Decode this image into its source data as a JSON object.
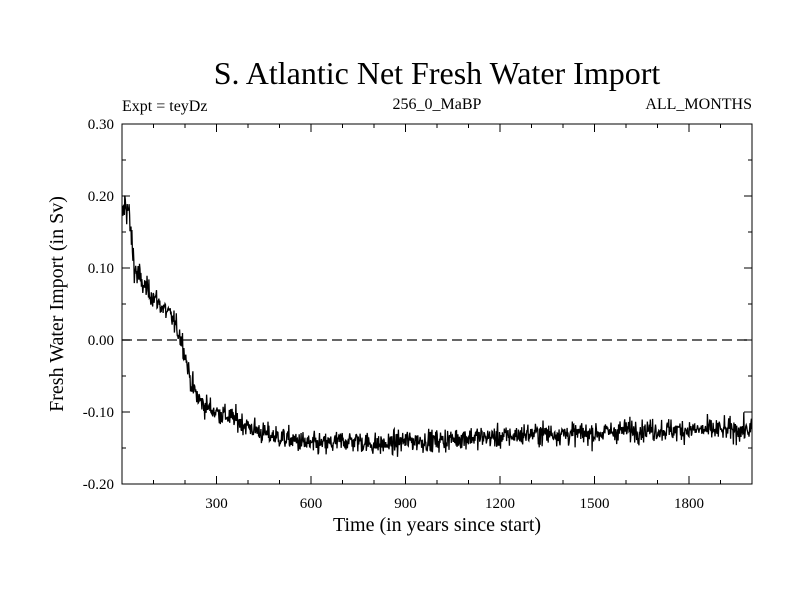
{
  "chart_data": {
    "type": "line",
    "title": "S. Atlantic Net Fresh Water Import",
    "subtitle_left": "Expt = teyDz",
    "subtitle_center": "256_0_MaBP",
    "subtitle_right": "ALL_MONTHS",
    "xlabel": "Time (in years since start)",
    "ylabel": "Fresh Water Import (in Sv)",
    "xlim": [
      0,
      2000
    ],
    "ylim": [
      -0.2,
      0.3
    ],
    "x_ticks": [
      300,
      600,
      900,
      1200,
      1500,
      1800
    ],
    "y_ticks": [
      -0.2,
      -0.1,
      0.0,
      0.1,
      0.2,
      0.3
    ],
    "y_tick_labels": [
      "-0.20",
      "-0.10",
      "0.00",
      "0.10",
      "0.20",
      "0.30"
    ],
    "reference_line": {
      "y": 0.0,
      "style": "dashed"
    },
    "series": [
      {
        "name": "net fresh water import",
        "x": [
          0,
          10,
          20,
          30,
          40,
          50,
          60,
          80,
          100,
          120,
          140,
          160,
          180,
          190,
          200,
          210,
          220,
          240,
          260,
          280,
          300,
          330,
          360,
          400,
          450,
          500,
          550,
          600,
          650,
          700,
          750,
          800,
          850,
          900,
          1000,
          1100,
          1200,
          1300,
          1400,
          1500,
          1600,
          1700,
          1800,
          1900,
          2000
        ],
        "values": [
          0.17,
          0.19,
          0.18,
          0.14,
          0.1,
          0.09,
          0.08,
          0.07,
          0.06,
          0.05,
          0.04,
          0.03,
          0.01,
          0.0,
          -0.02,
          -0.04,
          -0.06,
          -0.08,
          -0.09,
          -0.095,
          -0.1,
          -0.105,
          -0.11,
          -0.12,
          -0.13,
          -0.135,
          -0.14,
          -0.145,
          -0.145,
          -0.14,
          -0.14,
          -0.145,
          -0.145,
          -0.14,
          -0.14,
          -0.135,
          -0.135,
          -0.13,
          -0.13,
          -0.13,
          -0.125,
          -0.125,
          -0.125,
          -0.125,
          -0.125
        ],
        "noise_amplitude": 0.02
      }
    ]
  }
}
